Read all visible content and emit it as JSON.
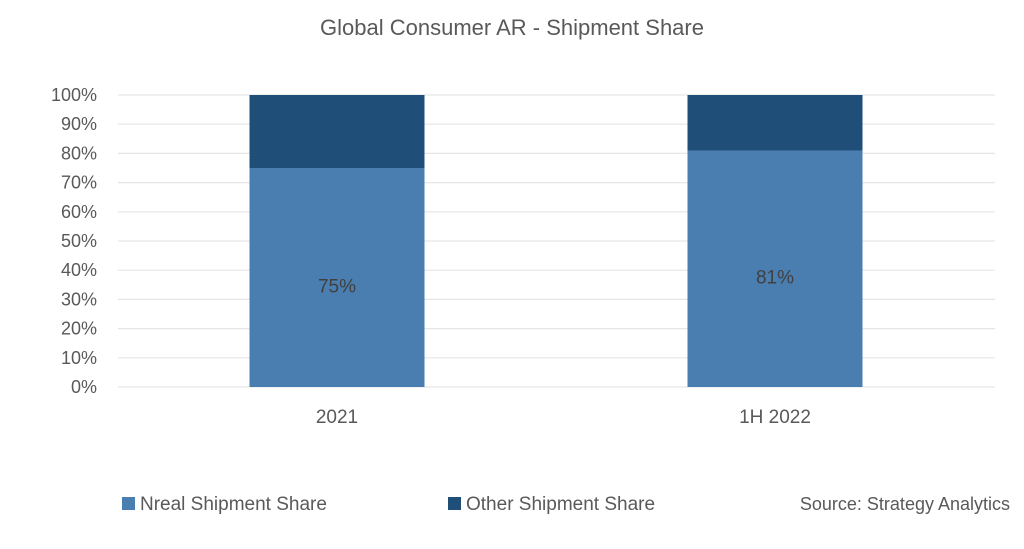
{
  "chart_data": {
    "type": "bar",
    "stacked": true,
    "title": "Global Consumer AR - Shipment Share",
    "xlabel": "",
    "ylabel": "",
    "categories": [
      "2021",
      "1H 2022"
    ],
    "series": [
      {
        "name": "Nreal Shipment Share",
        "values": [
          75,
          81
        ],
        "color": "#4a7eb0",
        "data_labels": [
          "75%",
          "81%"
        ]
      },
      {
        "name": "Other Shipment Share",
        "values": [
          25,
          19
        ],
        "color": "#1f4e79"
      }
    ],
    "ylim": [
      0,
      100
    ],
    "yticks": [
      0,
      10,
      20,
      30,
      40,
      50,
      60,
      70,
      80,
      90,
      100
    ],
    "ytick_labels": [
      "0%",
      "10%",
      "20%",
      "30%",
      "40%",
      "50%",
      "60%",
      "70%",
      "80%",
      "90%",
      "100%"
    ],
    "grid": true,
    "legend_position": "bottom-left",
    "source_note": "Source: Strategy Analytics",
    "colors": {
      "gridline": "#e6e6e6",
      "text": "#595959",
      "label": "#404040"
    }
  }
}
